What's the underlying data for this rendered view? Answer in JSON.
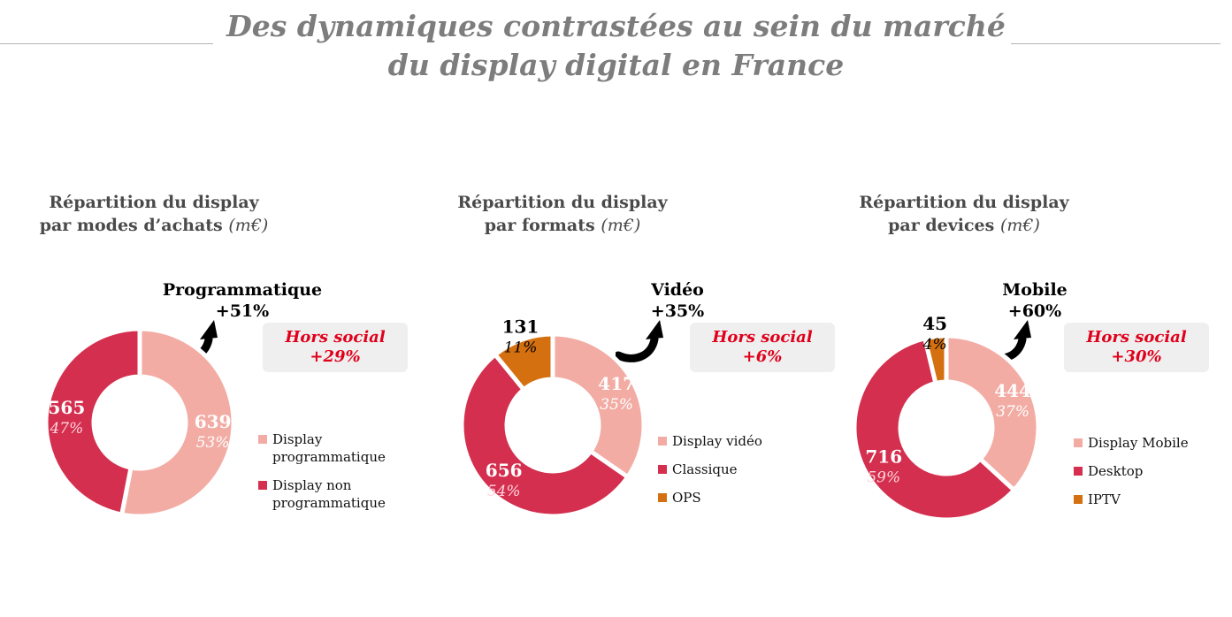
{
  "page": {
    "title_line1": "Des dynamiques contrastées au sein du marché",
    "title_line2": "du display digital en France"
  },
  "colors": {
    "light": "#f2aca4",
    "dark": "#d42f4e",
    "orange": "#d4700f",
    "red_text": "#e0001b"
  },
  "chart_data": [
    {
      "type": "pie",
      "title_line1": "Répartition du display",
      "title_line2": "par modes d’achats",
      "unit": "(m€)",
      "highlight": {
        "label": "Programmatique",
        "growth": "+51%"
      },
      "badge": {
        "line1": "Hors social",
        "line2": "+29%"
      },
      "slices": [
        {
          "label": "Display programmatique",
          "value": 639,
          "pct": "53%",
          "color": "#f2aca4"
        },
        {
          "label": "Display non programmatique",
          "value": 565,
          "pct": "47%",
          "color": "#d42f4e"
        }
      ]
    },
    {
      "type": "pie",
      "title_line1": "Répartition du display",
      "title_line2": "par formats",
      "unit": "(m€)",
      "highlight": {
        "label": "Vidéo",
        "growth": "+35%"
      },
      "badge": {
        "line1": "Hors social",
        "line2": "+6%"
      },
      "slices": [
        {
          "label": "Display vidéo",
          "value": 417,
          "pct": "35%",
          "color": "#f2aca4"
        },
        {
          "label": "Classique",
          "value": 656,
          "pct": "54%",
          "color": "#d42f4e"
        },
        {
          "label": "OPS",
          "value": 131,
          "pct": "11%",
          "color": "#d4700f"
        }
      ]
    },
    {
      "type": "pie",
      "title_line1": "Répartition du display",
      "title_line2": "par devices",
      "unit": "(m€)",
      "highlight": {
        "label": "Mobile",
        "growth": "+60%"
      },
      "badge": {
        "line1": "Hors social",
        "line2": "+30%"
      },
      "slices": [
        {
          "label": "Display Mobile",
          "value": 444,
          "pct": "37%",
          "color": "#f2aca4"
        },
        {
          "label": "Desktop",
          "value": 716,
          "pct": "59%",
          "color": "#d42f4e"
        },
        {
          "label": "IPTV",
          "value": 45,
          "pct": "4%",
          "color": "#d4700f"
        }
      ]
    }
  ]
}
